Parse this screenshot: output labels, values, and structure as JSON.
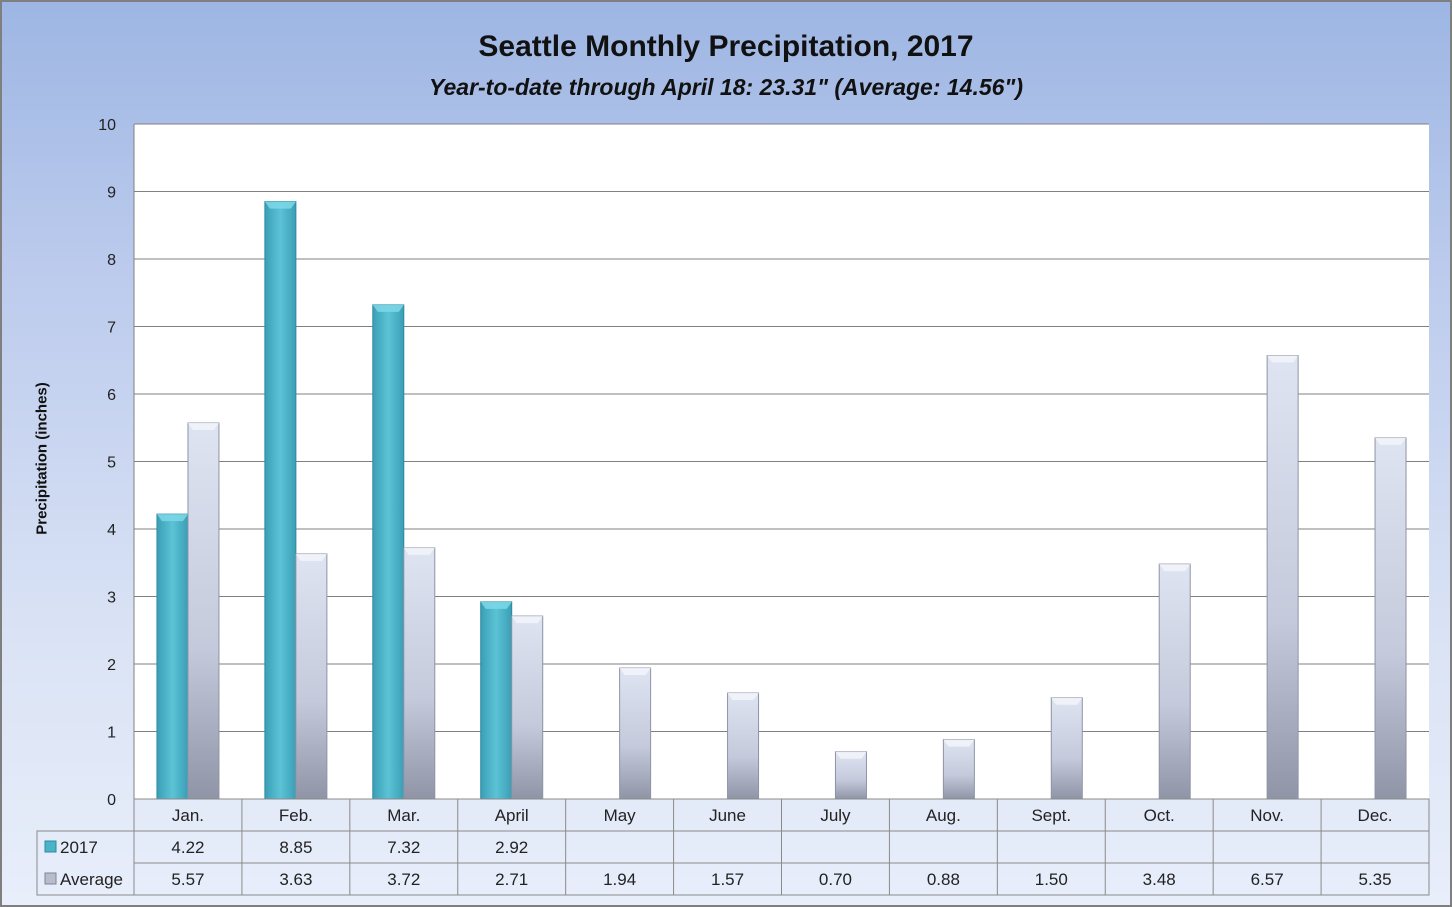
{
  "chart_data": {
    "type": "bar",
    "title": "Seattle Monthly Precipitation, 2017",
    "subtitle": "Year-to-date through April 18: 23.31\" (Average: 14.56\")",
    "xlabel": "",
    "ylabel": "Precipitation (inches)",
    "ylim": [
      0,
      10
    ],
    "yticks": [
      "0",
      "1",
      "2",
      "3",
      "4",
      "5",
      "6",
      "7",
      "8",
      "9",
      "10"
    ],
    "grid": true,
    "categories": [
      "Jan.",
      "Feb.",
      "Mar.",
      "April",
      "May",
      "June",
      "July",
      "Aug.",
      "Sept.",
      "Oct.",
      "Nov.",
      "Dec."
    ],
    "series": [
      {
        "name": "2017",
        "color": "#4bb3c8",
        "values": [
          4.22,
          8.85,
          7.32,
          2.92,
          null,
          null,
          null,
          null,
          null,
          null,
          null,
          null
        ],
        "labels": [
          "4.22",
          "8.85",
          "7.32",
          "2.92",
          "",
          "",
          "",
          "",
          "",
          "",
          "",
          ""
        ]
      },
      {
        "name": "Average",
        "color": "#c9d0e3",
        "values": [
          5.57,
          3.63,
          3.72,
          2.71,
          1.94,
          1.57,
          0.7,
          0.88,
          1.5,
          3.48,
          6.57,
          5.35
        ],
        "labels": [
          "5.57",
          "3.63",
          "3.72",
          "2.71",
          "1.94",
          "1.57",
          "0.70",
          "0.88",
          "1.50",
          "3.48",
          "6.57",
          "5.35"
        ]
      }
    ],
    "legend": "data-table"
  }
}
